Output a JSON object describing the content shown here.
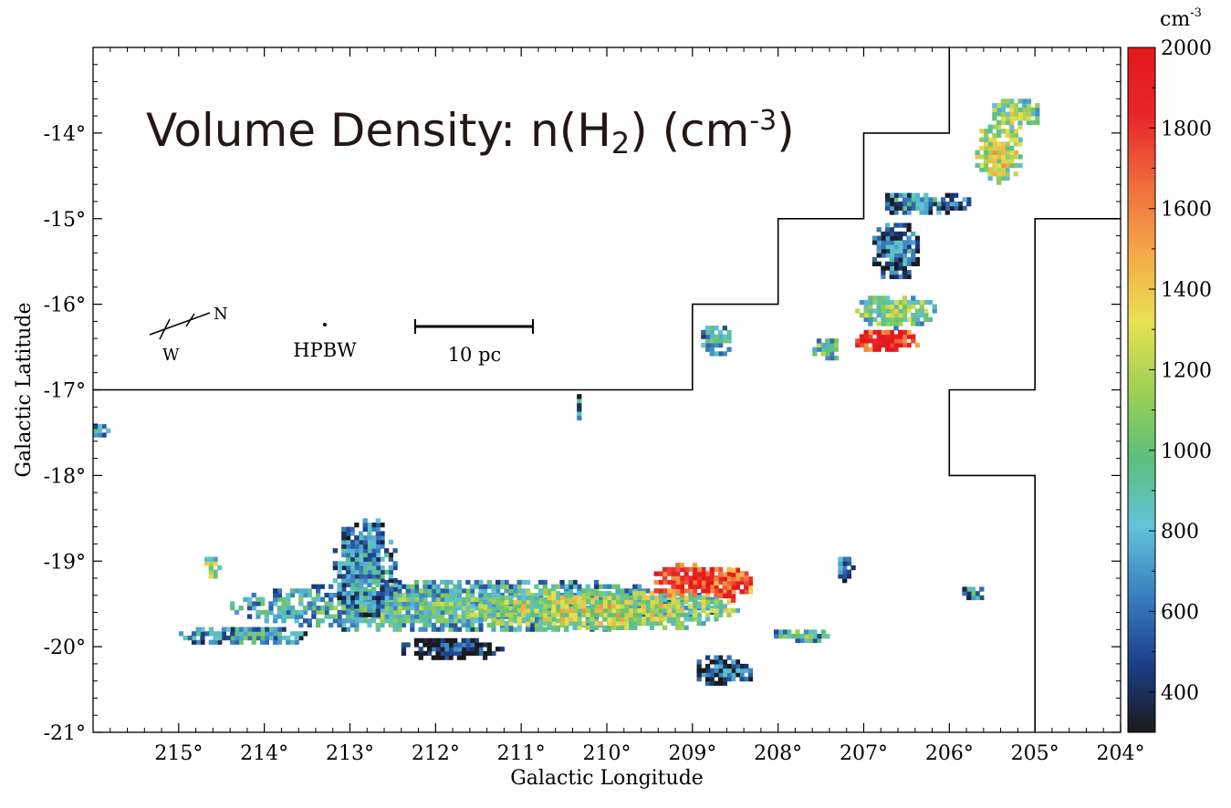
{
  "chart_data": {
    "type": "heatmap",
    "title": "Volume Density: n(H",
    "title_subscript": "2",
    "title_tail_open": ") (cm",
    "title_superscript": "-3",
    "title_tail_close": ")",
    "xlabel": "Galactic Longitude",
    "ylabel": "Galactic Latitude",
    "xlim": [
      216.0,
      204.0
    ],
    "ylim": [
      -21.0,
      -13.0
    ],
    "x_ticks": [
      {
        "value": 215,
        "label": "215°"
      },
      {
        "value": 214,
        "label": "214°"
      },
      {
        "value": 213,
        "label": "213°"
      },
      {
        "value": 212,
        "label": "212°"
      },
      {
        "value": 211,
        "label": "211°"
      },
      {
        "value": 210,
        "label": "210°"
      },
      {
        "value": 209,
        "label": "209°"
      },
      {
        "value": 208,
        "label": "208°"
      },
      {
        "value": 207,
        "label": "207°"
      },
      {
        "value": 206,
        "label": "206°"
      },
      {
        "value": 205,
        "label": "205°"
      },
      {
        "value": 204,
        "label": "204°"
      }
    ],
    "y_ticks": [
      {
        "value": -14,
        "label": "-14°"
      },
      {
        "value": -15,
        "label": "-15°"
      },
      {
        "value": -16,
        "label": "-16°"
      },
      {
        "value": -17,
        "label": "-17°"
      },
      {
        "value": -18,
        "label": "-18°"
      },
      {
        "value": -19,
        "label": "-19°"
      },
      {
        "value": -20,
        "label": "-20°"
      },
      {
        "value": -21,
        "label": "-21°"
      }
    ],
    "colorbar": {
      "unit_base": "cm",
      "unit_exponent": "-3",
      "min": 300,
      "max": 2000,
      "ticks": [
        {
          "value": 2000,
          "label": "2000"
        },
        {
          "value": 1800,
          "label": "1800"
        },
        {
          "value": 1600,
          "label": "1600"
        },
        {
          "value": 1400,
          "label": "1400"
        },
        {
          "value": 1200,
          "label": "1200"
        },
        {
          "value": 1000,
          "label": "1000"
        },
        {
          "value": 800,
          "label": "800"
        },
        {
          "value": 600,
          "label": "600"
        },
        {
          "value": 400,
          "label": "400"
        }
      ],
      "colormap": [
        "#1a1a1a",
        "#1d3f8a",
        "#3a7fc0",
        "#62c3d8",
        "#5cbf7a",
        "#9fd052",
        "#e8e153",
        "#f5a847",
        "#ef6c3c",
        "#e8262a",
        "#e31a1c"
      ]
    },
    "survey_boundary": [
      [
        216.0,
        -17.0
      ],
      [
        209.0,
        -17.0
      ],
      [
        209.0,
        -16.0
      ],
      [
        208.0,
        -16.0
      ],
      [
        208.0,
        -15.0
      ],
      [
        207.0,
        -15.0
      ],
      [
        207.0,
        -14.0
      ],
      [
        206.0,
        -14.0
      ],
      [
        206.0,
        -13.0
      ]
    ],
    "survey_boundary_2": [
      [
        204.0,
        -15.0
      ],
      [
        205.0,
        -15.0
      ],
      [
        205.0,
        -17.0
      ],
      [
        206.0,
        -17.0
      ],
      [
        206.0,
        -18.0
      ],
      [
        205.0,
        -18.0
      ],
      [
        205.0,
        -21.0
      ]
    ],
    "annotations": {
      "compass_north": "N",
      "compass_west": "W",
      "beam_label": "HPBW",
      "scale_bar_label": "10 pc"
    },
    "regions": [
      {
        "l_center": 211.5,
        "b_center": -19.55,
        "l_half": 2.9,
        "b_half": 0.32,
        "value": 950
      },
      {
        "l_center": 210.0,
        "b_center": -19.6,
        "l_half": 1.6,
        "b_half": 0.25,
        "value": 1250
      },
      {
        "l_center": 208.9,
        "b_center": -19.25,
        "l_half": 0.6,
        "b_half": 0.22,
        "value": 1900
      },
      {
        "l_center": 208.5,
        "b_center": -19.3,
        "l_half": 0.25,
        "b_half": 0.18,
        "value": 1850
      },
      {
        "l_center": 212.8,
        "b_center": -19.1,
        "l_half": 0.4,
        "b_half": 0.6,
        "value": 750
      },
      {
        "l_center": 214.2,
        "b_center": -19.9,
        "l_half": 0.8,
        "b_half": 0.12,
        "value": 800
      },
      {
        "l_center": 211.8,
        "b_center": -20.05,
        "l_half": 0.6,
        "b_half": 0.15,
        "value": 420
      },
      {
        "l_center": 208.6,
        "b_center": -20.3,
        "l_half": 0.35,
        "b_half": 0.2,
        "value": 600
      },
      {
        "l_center": 207.7,
        "b_center": -19.9,
        "l_half": 0.35,
        "b_half": 0.1,
        "value": 900
      },
      {
        "l_center": 207.2,
        "b_center": -19.1,
        "l_half": 0.1,
        "b_half": 0.15,
        "value": 700
      },
      {
        "l_center": 206.7,
        "b_center": -16.45,
        "l_half": 0.4,
        "b_half": 0.15,
        "value": 1950
      },
      {
        "l_center": 206.6,
        "b_center": -16.1,
        "l_half": 0.5,
        "b_half": 0.2,
        "value": 1100
      },
      {
        "l_center": 206.6,
        "b_center": -15.4,
        "l_half": 0.3,
        "b_half": 0.35,
        "value": 650
      },
      {
        "l_center": 206.3,
        "b_center": -14.85,
        "l_half": 0.6,
        "b_half": 0.15,
        "value": 700
      },
      {
        "l_center": 205.4,
        "b_center": -14.25,
        "l_half": 0.3,
        "b_half": 0.35,
        "value": 1300
      },
      {
        "l_center": 205.2,
        "b_center": -13.8,
        "l_half": 0.3,
        "b_half": 0.2,
        "value": 1150
      },
      {
        "l_center": 207.4,
        "b_center": -16.55,
        "l_half": 0.2,
        "b_half": 0.15,
        "value": 1000
      },
      {
        "l_center": 208.7,
        "b_center": -16.45,
        "l_half": 0.2,
        "b_half": 0.2,
        "value": 900
      },
      {
        "l_center": 214.6,
        "b_center": -19.1,
        "l_half": 0.1,
        "b_half": 0.15,
        "value": 1200
      },
      {
        "l_center": 215.9,
        "b_center": -17.5,
        "l_half": 0.1,
        "b_half": 0.1,
        "value": 800
      },
      {
        "l_center": 210.3,
        "b_center": -17.2,
        "l_half": 0.05,
        "b_half": 0.15,
        "value": 700
      },
      {
        "l_center": 205.7,
        "b_center": -19.4,
        "l_half": 0.15,
        "b_half": 0.1,
        "value": 700
      }
    ]
  }
}
